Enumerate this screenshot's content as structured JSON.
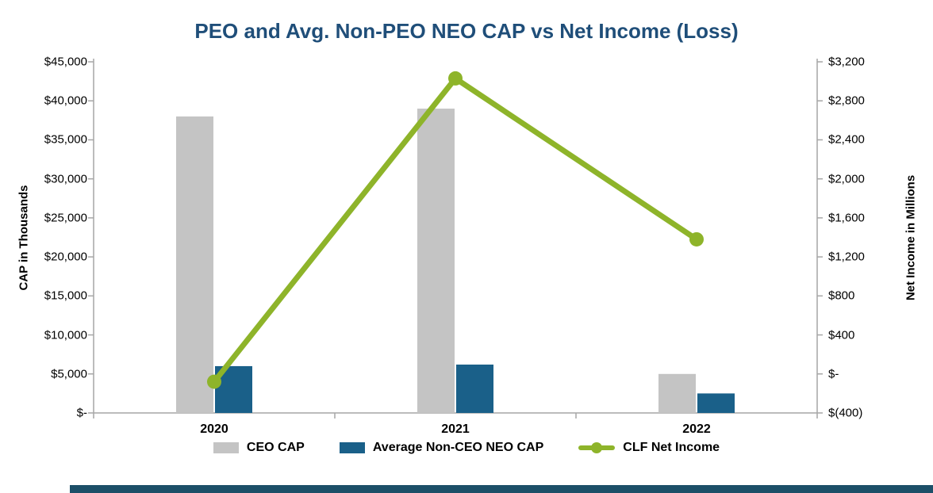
{
  "page": {
    "title": "PEO and Avg. Non-PEO NEO CAP vs Net Income (Loss)"
  },
  "chart_data": {
    "type": "bar",
    "subtype": "combo-bar-line",
    "title": "PEO and Avg. Non-PEO NEO CAP vs Net Income (Loss)",
    "categories": [
      "2020",
      "2021",
      "2022"
    ],
    "series": [
      {
        "name": "CEO CAP",
        "type": "bar",
        "axis": "left",
        "color": "#C4C4C4",
        "values": [
          38000,
          39000,
          5000
        ]
      },
      {
        "name": "Average Non-CEO NEO CAP",
        "type": "bar",
        "axis": "left",
        "color": "#1A6089",
        "values": [
          6000,
          6200,
          2500
        ]
      },
      {
        "name": "CLF Net Income",
        "type": "line",
        "axis": "right",
        "color": "#8EB42A",
        "values": [
          -80,
          3030,
          1380
        ]
      }
    ],
    "left_axis": {
      "label": "CAP in Thousands",
      "min": 0,
      "max": 45000,
      "ticks": [
        "$45,000",
        "$40,000",
        "$35,000",
        "$30,000",
        "$25,000",
        "$20,000",
        "$15,000",
        "$10,000",
        "$5,000",
        "$-"
      ]
    },
    "right_axis": {
      "label": "Net Income in Millions",
      "min": -400,
      "max": 3200,
      "ticks": [
        "$3,200",
        "$2,800",
        "$2,400",
        "$2,000",
        "$1,600",
        "$1,200",
        "$800",
        "$400",
        "$-",
        "$(400)"
      ]
    },
    "legend": [
      {
        "label": "CEO CAP",
        "swatch": "bar",
        "color": "#C4C4C4"
      },
      {
        "label": "Average Non-CEO NEO CAP",
        "swatch": "bar",
        "color": "#1A6089"
      },
      {
        "label": "CLF Net Income",
        "swatch": "line",
        "color": "#8EB42A"
      }
    ],
    "grid": false,
    "legend_position": "bottom"
  },
  "colors": {
    "title": "#1F4E79",
    "axis_line": "#A6A6A6",
    "footer_bar": "#1C4F68"
  }
}
